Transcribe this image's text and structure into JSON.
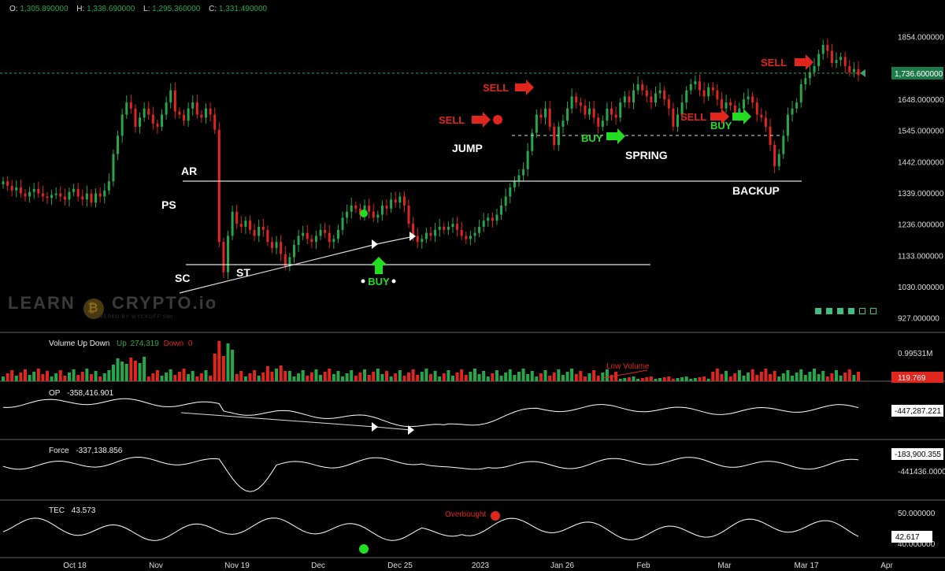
{
  "ohlc": {
    "o_label": "O:",
    "o": "1,305.890000",
    "h_label": "H:",
    "h": "1,338.690000",
    "l_label": "L:",
    "l": "1,295.360000",
    "c_label": "C:",
    "c": "1,331.490000"
  },
  "watermark": {
    "text_left": "LEARN",
    "coin": "₿",
    "text_right": "CRYPTO.io",
    "sub": "POWERED BY WYCKOFF SMI"
  },
  "colors": {
    "up": "#26a84a",
    "down": "#e0261d",
    "line": "#ffffff",
    "signal_buy": "#22dd22",
    "signal_sell": "#e0261d",
    "price_tag": "#1f7a4a",
    "volume_tag": "#e0261d"
  },
  "chart_data": [
    {
      "type": "candlestick",
      "panel": "price",
      "y_ticks": [
        "1854.000000",
        "1648.000000",
        "1545.000000",
        "1442.000000",
        "1339.000000",
        "1236.000000",
        "1133.000000",
        "1030.000000",
        "927.000000"
      ],
      "y_tick_values": [
        1854,
        1648,
        1545,
        1442,
        1339,
        1236,
        1133,
        1030,
        927
      ],
      "ylim": [
        900,
        1900
      ],
      "last_price_tag": "1,736.600000",
      "last_price": 1736.6,
      "annotations": [
        "AR",
        "PS",
        "SC",
        "ST",
        "BUY",
        "JUMP",
        "SELL",
        "SELL",
        "BUY",
        "SPRING",
        "SELL",
        "BUY",
        "BACKUP",
        "SELL"
      ],
      "close_path": [
        1380,
        1365,
        1350,
        1360,
        1340,
        1330,
        1345,
        1355,
        1340,
        1330,
        1325,
        1335,
        1340,
        1330,
        1320,
        1345,
        1355,
        1330,
        1320,
        1340,
        1310,
        1340,
        1330,
        1350,
        1380,
        1470,
        1530,
        1600,
        1640,
        1620,
        1560,
        1590,
        1620,
        1600,
        1570,
        1560,
        1600,
        1640,
        1680,
        1610,
        1600,
        1580,
        1620,
        1640,
        1600,
        1590,
        1620,
        1600,
        1550,
        1180,
        1080,
        1200,
        1280,
        1240,
        1230,
        1250,
        1220,
        1200,
        1230,
        1220,
        1180,
        1160,
        1180,
        1140,
        1100,
        1130,
        1170,
        1200,
        1210,
        1190,
        1180,
        1200,
        1220,
        1210,
        1180,
        1190,
        1220,
        1260,
        1280,
        1300,
        1290,
        1270,
        1300,
        1280,
        1260,
        1270,
        1300,
        1290,
        1320,
        1310,
        1330,
        1300,
        1240,
        1200,
        1180,
        1190,
        1210,
        1200,
        1220,
        1230,
        1220,
        1230,
        1240,
        1220,
        1200,
        1190,
        1200,
        1210,
        1230,
        1250,
        1260,
        1250,
        1270,
        1300,
        1330,
        1360,
        1380,
        1400,
        1420,
        1480,
        1540,
        1600,
        1590,
        1620,
        1560,
        1500,
        1560,
        1580,
        1620,
        1660,
        1640,
        1630,
        1600,
        1620,
        1590,
        1560,
        1580,
        1620,
        1600,
        1590,
        1640,
        1660,
        1640,
        1680,
        1700,
        1680,
        1660,
        1640,
        1670,
        1680,
        1650,
        1620,
        1560,
        1600,
        1640,
        1680,
        1700,
        1710,
        1680,
        1660,
        1690,
        1680,
        1650,
        1620,
        1640,
        1630,
        1600,
        1620,
        1650,
        1660,
        1640,
        1600,
        1590,
        1560,
        1500,
        1430,
        1470,
        1530,
        1600,
        1620,
        1640,
        1700,
        1720,
        1740,
        1760,
        1800,
        1830,
        1810,
        1770,
        1780,
        1790,
        1760,
        1740,
        1750,
        1730
      ]
    },
    {
      "type": "bar",
      "panel": "volume",
      "name": "Volume Up Down",
      "up_label": "Up",
      "up_value": "274,319",
      "down_label": "Down",
      "down_value": "0",
      "annotation": "Low Volume",
      "y_ticks": [
        "0.99531M"
      ],
      "last_value_tag": "119.769"
    },
    {
      "type": "line",
      "panel": "OP",
      "name": "OP",
      "value": "-358,416.901",
      "last_value_tag": "-447,287.221",
      "y_ticks": [
        "-447,287.221"
      ]
    },
    {
      "type": "line",
      "panel": "Force",
      "name": "Force",
      "value": "-337,138.856",
      "last_value_tag": "-183,900.355",
      "y_ticks": [
        "-441436.000000"
      ]
    },
    {
      "type": "line",
      "panel": "TEC",
      "name": "TEC",
      "value": "43.573",
      "last_value_tag": "42.617",
      "annotation": "Overbought",
      "y_ticks": [
        "50.000000",
        "40.000000"
      ],
      "y_tick_values": [
        50,
        40
      ]
    }
  ],
  "x_axis": {
    "labels": [
      "Oct 18",
      "Nov",
      "Nov 19",
      "Dec",
      "Dec 25",
      "2023",
      "Jan 26",
      "Feb",
      "Mar",
      "Mar 17",
      "Apr"
    ]
  },
  "signals": {
    "sell1": "SELL",
    "sell2": "SELL",
    "sell3": "SELL",
    "sell4": "SELL",
    "buy1": "BUY",
    "buy2": "BUY",
    "buy3": "BUY"
  }
}
